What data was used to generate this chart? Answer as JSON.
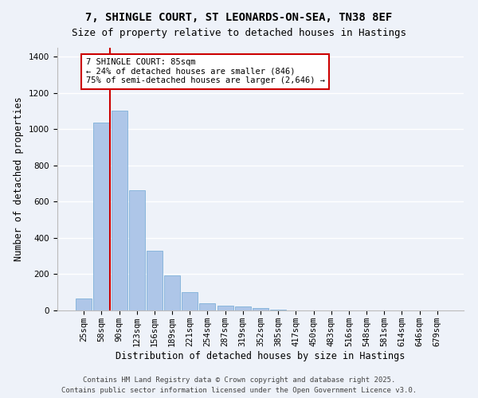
{
  "title_line1": "7, SHINGLE COURT, ST LEONARDS-ON-SEA, TN38 8EF",
  "title_line2": "Size of property relative to detached houses in Hastings",
  "xlabel": "Distribution of detached houses by size in Hastings",
  "ylabel": "Number of detached properties",
  "categories": [
    "25sqm",
    "58sqm",
    "90sqm",
    "123sqm",
    "156sqm",
    "189sqm",
    "221sqm",
    "254sqm",
    "287sqm",
    "319sqm",
    "352sqm",
    "385sqm",
    "417sqm",
    "450sqm",
    "483sqm",
    "516sqm",
    "548sqm",
    "581sqm",
    "614sqm",
    "646sqm",
    "679sqm"
  ],
  "values": [
    65,
    1035,
    1105,
    665,
    330,
    195,
    100,
    40,
    25,
    20,
    15,
    5,
    0,
    0,
    0,
    0,
    0,
    0,
    0,
    0,
    0
  ],
  "bar_color": "#aec6e8",
  "bar_edge_color": "#6fa8d4",
  "vline_color": "#cc0000",
  "vline_x_index": 1.5,
  "annotation_text": "7 SHINGLE COURT: 85sqm\n← 24% of detached houses are smaller (846)\n75% of semi-detached houses are larger (2,646) →",
  "annotation_box_color": "#ffffff",
  "annotation_box_edge": "#cc0000",
  "ylim": [
    0,
    1450
  ],
  "yticks": [
    0,
    200,
    400,
    600,
    800,
    1000,
    1200,
    1400
  ],
  "background_color": "#eef2f9",
  "grid_color": "#ffffff",
  "footer_line1": "Contains HM Land Registry data © Crown copyright and database right 2025.",
  "footer_line2": "Contains public sector information licensed under the Open Government Licence v3.0.",
  "title_fontsize": 10,
  "subtitle_fontsize": 9,
  "axis_label_fontsize": 8.5,
  "tick_fontsize": 7.5,
  "annotation_fontsize": 7.5,
  "footer_fontsize": 6.5
}
